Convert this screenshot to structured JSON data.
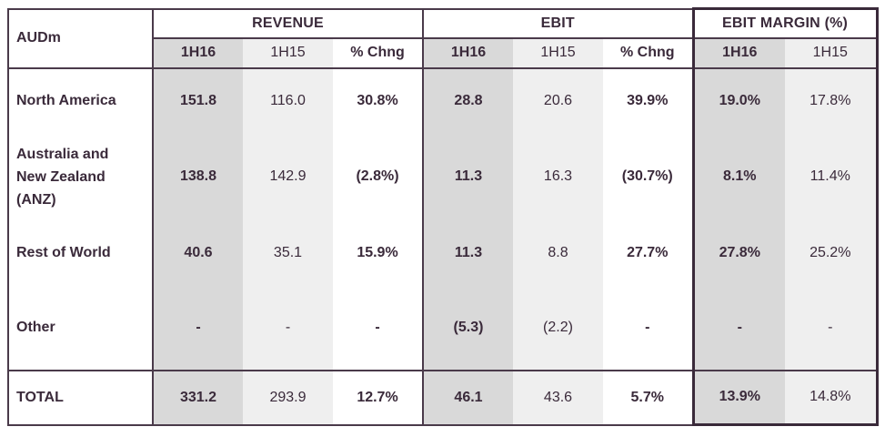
{
  "header": {
    "unit_label": "AUDm",
    "groups": [
      "REVENUE",
      "EBIT",
      "EBIT MARGIN (%)"
    ],
    "subheaders": [
      "1H16",
      "1H15",
      "% Chng",
      "1H16",
      "1H15",
      "% Chng",
      "1H16",
      "1H15"
    ]
  },
  "rows": [
    {
      "label": "North America",
      "values": [
        "151.8",
        "116.0",
        "30.8%",
        "28.8",
        "20.6",
        "39.9%",
        "19.0%",
        "17.8%"
      ]
    },
    {
      "label_lines": [
        "Australia and",
        "New Zealand",
        "(ANZ)"
      ],
      "values": [
        "138.8",
        "142.9",
        "(2.8%)",
        "11.3",
        "16.3",
        "(30.7%)",
        "8.1%",
        "11.4%"
      ]
    },
    {
      "label": "Rest of World",
      "values": [
        "40.6",
        "35.1",
        "15.9%",
        "11.3",
        "8.8",
        "27.7%",
        "27.8%",
        "25.2%"
      ]
    },
    {
      "label": "Other",
      "values": [
        "-",
        "-",
        "-",
        "(5.3)",
        "(2.2)",
        "-",
        "-",
        "-"
      ]
    }
  ],
  "total": {
    "label": "TOTAL",
    "values": [
      "331.2",
      "293.9",
      "12.7%",
      "46.1",
      "43.6",
      "5.7%",
      "13.9%",
      "14.8%"
    ]
  }
}
